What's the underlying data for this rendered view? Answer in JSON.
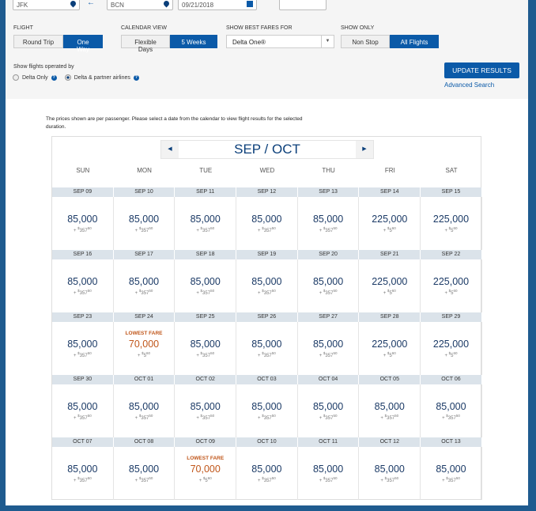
{
  "search": {
    "origin": "JFK",
    "destination": "BCN",
    "date": "09/21/2018"
  },
  "filters": {
    "flight": {
      "label": "FLIGHT",
      "options": [
        "Round Trip",
        "One Way"
      ],
      "selected": "One Way"
    },
    "calendar_view": {
      "label": "CALENDAR VIEW",
      "options": [
        "Flexible Days",
        "5 Weeks"
      ],
      "selected": "5 Weeks"
    },
    "best_fares": {
      "label": "SHOW BEST FARES FOR",
      "value": "Delta One®"
    },
    "show_only": {
      "label": "SHOW ONLY",
      "options": [
        "Non Stop",
        "All Flights"
      ],
      "selected": "All Flights"
    },
    "operated_by": {
      "label": "Show flights operated by",
      "options": [
        "Delta Only",
        "Delta & partner airlines"
      ],
      "selected": "Delta & partner airlines"
    }
  },
  "update_label": "UPDATE RESULTS",
  "advanced_label": "Advanced Search",
  "note": "The prices shown are per passenger. Please select a date from the calendar to view flight results for the selected duration.",
  "calendar": {
    "month": "SEP / OCT",
    "days": [
      "SUN",
      "MON",
      "TUE",
      "WED",
      "THU",
      "FRI",
      "SAT"
    ],
    "lowest_label": "LOWEST FARE",
    "weeks": [
      [
        {
          "d": "SEP 09",
          "m": "85,000",
          "f": "357",
          "c": "50"
        },
        {
          "d": "SEP 10",
          "m": "85,000",
          "f": "357",
          "c": "50"
        },
        {
          "d": "SEP 11",
          "m": "85,000",
          "f": "357",
          "c": "50"
        },
        {
          "d": "SEP 12",
          "m": "85,000",
          "f": "357",
          "c": "50"
        },
        {
          "d": "SEP 13",
          "m": "85,000",
          "f": "357",
          "c": "50"
        },
        {
          "d": "SEP 14",
          "m": "225,000",
          "f": "5",
          "c": "60"
        },
        {
          "d": "SEP 15",
          "m": "225,000",
          "f": "5",
          "c": "60"
        }
      ],
      [
        {
          "d": "SEP 16",
          "m": "85,000",
          "f": "357",
          "c": "50"
        },
        {
          "d": "SEP 17",
          "m": "85,000",
          "f": "357",
          "c": "50"
        },
        {
          "d": "SEP 18",
          "m": "85,000",
          "f": "357",
          "c": "50"
        },
        {
          "d": "SEP 19",
          "m": "85,000",
          "f": "357",
          "c": "50"
        },
        {
          "d": "SEP 20",
          "m": "85,000",
          "f": "357",
          "c": "50"
        },
        {
          "d": "SEP 21",
          "m": "225,000",
          "f": "5",
          "c": "60"
        },
        {
          "d": "SEP 22",
          "m": "225,000",
          "f": "5",
          "c": "60"
        }
      ],
      [
        {
          "d": "SEP 23",
          "m": "85,000",
          "f": "357",
          "c": "50"
        },
        {
          "d": "SEP 24",
          "m": "70,000",
          "f": "5",
          "c": "60",
          "low": true
        },
        {
          "d": "SEP 25",
          "m": "85,000",
          "f": "357",
          "c": "50"
        },
        {
          "d": "SEP 26",
          "m": "85,000",
          "f": "357",
          "c": "50"
        },
        {
          "d": "SEP 27",
          "m": "85,000",
          "f": "357",
          "c": "50"
        },
        {
          "d": "SEP 28",
          "m": "225,000",
          "f": "5",
          "c": "60"
        },
        {
          "d": "SEP 29",
          "m": "225,000",
          "f": "5",
          "c": "60"
        }
      ],
      [
        {
          "d": "SEP 30",
          "m": "85,000",
          "f": "357",
          "c": "50"
        },
        {
          "d": "OCT 01",
          "m": "85,000",
          "f": "357",
          "c": "50"
        },
        {
          "d": "OCT 02",
          "m": "85,000",
          "f": "357",
          "c": "50"
        },
        {
          "d": "OCT 03",
          "m": "85,000",
          "f": "357",
          "c": "50"
        },
        {
          "d": "OCT 04",
          "m": "85,000",
          "f": "357",
          "c": "50"
        },
        {
          "d": "OCT 05",
          "m": "85,000",
          "f": "357",
          "c": "50"
        },
        {
          "d": "OCT 06",
          "m": "85,000",
          "f": "357",
          "c": "50"
        }
      ],
      [
        {
          "d": "OCT 07",
          "m": "85,000",
          "f": "357",
          "c": "50"
        },
        {
          "d": "OCT 08",
          "m": "85,000",
          "f": "357",
          "c": "50"
        },
        {
          "d": "OCT 09",
          "m": "70,000",
          "f": "5",
          "c": "60",
          "low": true
        },
        {
          "d": "OCT 10",
          "m": "85,000",
          "f": "357",
          "c": "50"
        },
        {
          "d": "OCT 11",
          "m": "85,000",
          "f": "357",
          "c": "50"
        },
        {
          "d": "OCT 12",
          "m": "85,000",
          "f": "357",
          "c": "50"
        },
        {
          "d": "OCT 13",
          "m": "85,000",
          "f": "357",
          "c": "50"
        }
      ]
    ]
  },
  "colors": {
    "frame": "#1f5b8f",
    "accent": "#0b5aa8",
    "lowest": "#c0561a",
    "miles": "#1b3a66"
  }
}
